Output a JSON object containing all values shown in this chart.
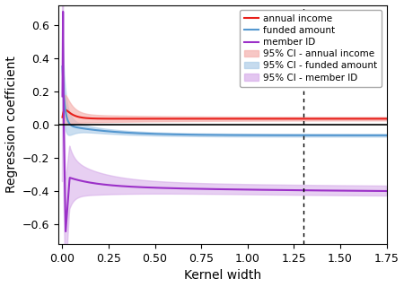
{
  "title": "",
  "xlabel": "Kernel width",
  "ylabel": "Regression coefficient",
  "xlim": [
    -0.02,
    1.75
  ],
  "ylim": [
    -0.72,
    0.72
  ],
  "xticks": [
    0.0,
    0.25,
    0.5,
    0.75,
    1.0,
    1.25,
    1.5,
    1.75
  ],
  "xticklabels": [
    "0.00",
    "0.25",
    "0.50",
    "0.75",
    "1.00",
    "1.25",
    "1.50",
    "1.75"
  ],
  "yticks": [
    -0.6,
    -0.4,
    -0.2,
    0.0,
    0.2,
    0.4,
    0.6
  ],
  "vline_x": 1.3,
  "hline_y": 0.0,
  "colors": {
    "annual_income": "#e8201a",
    "funded_amount": "#5598d0",
    "member_id": "#9b30c8",
    "ci_annual_income": "#f5b0ad",
    "ci_funded_amount": "#aecde8",
    "ci_member_id": "#d4a8e8"
  },
  "legend_labels": [
    "annual income",
    "funded amount",
    "member ID",
    "95% CI - annual income",
    "95% CI - funded amount",
    "95% CI - member ID"
  ],
  "figsize": [
    4.5,
    3.2
  ],
  "dpi": 100
}
